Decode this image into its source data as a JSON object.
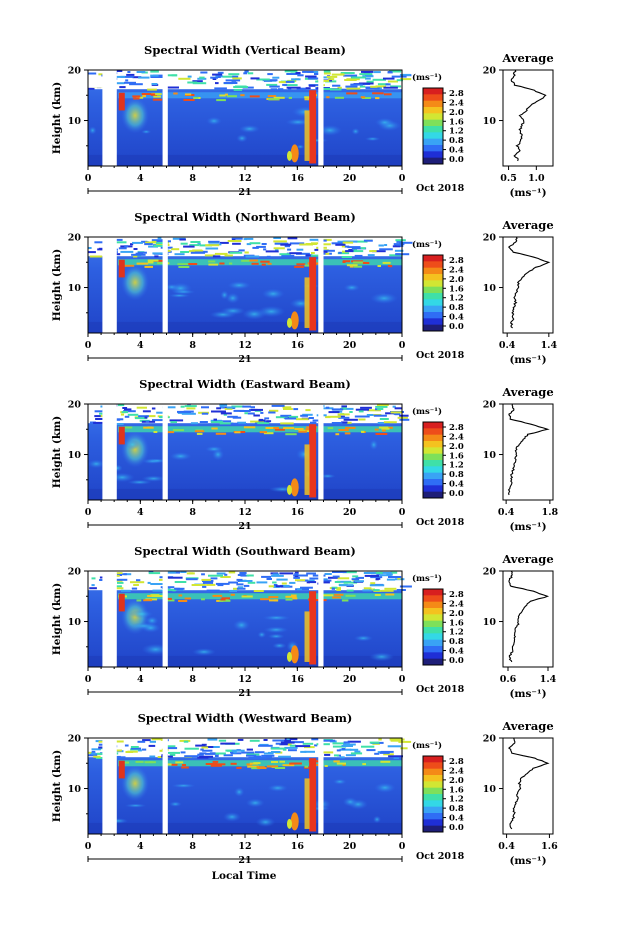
{
  "chart_data": {
    "type": "heatmap",
    "colorbar": {
      "unit": "(ms⁻¹)",
      "tick_labels": [
        "2.8",
        "2.4",
        "2.0",
        "1.6",
        "1.2",
        "0.8",
        "0.4",
        "0.0"
      ],
      "colors": [
        "#1e1e78",
        "#1f2fd6",
        "#2f6df5",
        "#39a3f5",
        "#33d8e6",
        "#3fe0a8",
        "#7ee05a",
        "#d2e633",
        "#f4c21f",
        "#f48a17",
        "#ee4d1a",
        "#d81f1f"
      ]
    },
    "x_tick_labels": [
      "0",
      "4",
      "8",
      "12",
      "16",
      "20",
      "0"
    ],
    "day_label": "21",
    "month_label": "Oct 2018",
    "y_tick_labels": [
      "20",
      "10"
    ],
    "ylabel": "Height (km)",
    "xlabel": "Local Time",
    "average_title": "Average",
    "average_xlabel": "(ms⁻¹)",
    "gaps_hours": [
      [
        1.1,
        2.2
      ],
      [
        5.7,
        6.1
      ],
      [
        17.6,
        18.0
      ]
    ],
    "panels": [
      {
        "title": "Spectral Width (Vertical Beam)",
        "avg_xticks": [
          "0.5",
          "1.0"
        ],
        "avg_xlim": [
          0.4,
          1.3
        ],
        "avg_profile": {
          "height": [
            2,
            3,
            4,
            5,
            6,
            7,
            8,
            9,
            10,
            11,
            12,
            13,
            14,
            15,
            16,
            17,
            18,
            19,
            20
          ],
          "value": [
            0.68,
            0.62,
            0.7,
            0.66,
            0.72,
            0.75,
            0.7,
            0.74,
            0.78,
            0.7,
            0.82,
            0.9,
            1.05,
            1.18,
            0.95,
            0.62,
            0.55,
            0.6,
            0.62
          ]
        }
      },
      {
        "title": "Spectral Width (Northward Beam)",
        "avg_xticks": [
          "0.4",
          "1.4"
        ],
        "avg_xlim": [
          0.3,
          1.5
        ],
        "avg_profile": {
          "height": [
            2,
            3,
            4,
            5,
            6,
            7,
            8,
            9,
            10,
            11,
            12,
            13,
            14,
            15,
            16,
            17,
            18,
            19,
            20
          ],
          "value": [
            0.52,
            0.5,
            0.55,
            0.53,
            0.56,
            0.6,
            0.58,
            0.62,
            0.68,
            0.66,
            0.75,
            0.9,
            1.1,
            1.4,
            1.05,
            0.55,
            0.45,
            0.6,
            0.62
          ]
        }
      },
      {
        "title": "Spectral Width (Eastward Beam)",
        "avg_xticks": [
          "0.4",
          "1.8"
        ],
        "avg_xlim": [
          0.3,
          1.9
        ],
        "avg_profile": {
          "height": [
            2,
            3,
            4,
            5,
            6,
            7,
            8,
            9,
            10,
            11,
            12,
            13,
            14,
            15,
            16,
            17,
            18,
            19,
            20
          ],
          "value": [
            0.52,
            0.48,
            0.55,
            0.56,
            0.58,
            0.62,
            0.68,
            0.7,
            0.74,
            0.72,
            0.8,
            0.95,
            1.1,
            1.7,
            1.2,
            0.55,
            0.5,
            0.65,
            0.6
          ]
        }
      },
      {
        "title": "Spectral Width (Southward Beam)",
        "avg_xticks": [
          "0.6",
          "1.4"
        ],
        "avg_xlim": [
          0.5,
          1.5
        ],
        "avg_profile": {
          "height": [
            2,
            3,
            4,
            5,
            6,
            7,
            8,
            9,
            10,
            11,
            12,
            13,
            14,
            15,
            16,
            17,
            18,
            19,
            20
          ],
          "value": [
            0.66,
            0.62,
            0.68,
            0.7,
            0.72,
            0.75,
            0.74,
            0.78,
            0.82,
            0.8,
            0.88,
            0.95,
            1.05,
            1.4,
            1.1,
            0.66,
            0.6,
            0.68,
            0.66
          ]
        }
      },
      {
        "title": "Spectral Width (Westward Beam)",
        "avg_xticks": [
          "0.4",
          "1.6"
        ],
        "avg_xlim": [
          0.3,
          1.7
        ],
        "avg_profile": {
          "height": [
            2,
            3,
            4,
            5,
            6,
            7,
            8,
            9,
            10,
            11,
            12,
            13,
            14,
            15,
            16,
            17,
            18,
            19,
            20
          ],
          "value": [
            0.55,
            0.5,
            0.58,
            0.62,
            0.6,
            0.66,
            0.7,
            0.68,
            0.8,
            0.76,
            0.82,
            0.98,
            1.15,
            1.55,
            1.2,
            0.55,
            0.48,
            0.62,
            0.6
          ]
        }
      }
    ]
  }
}
